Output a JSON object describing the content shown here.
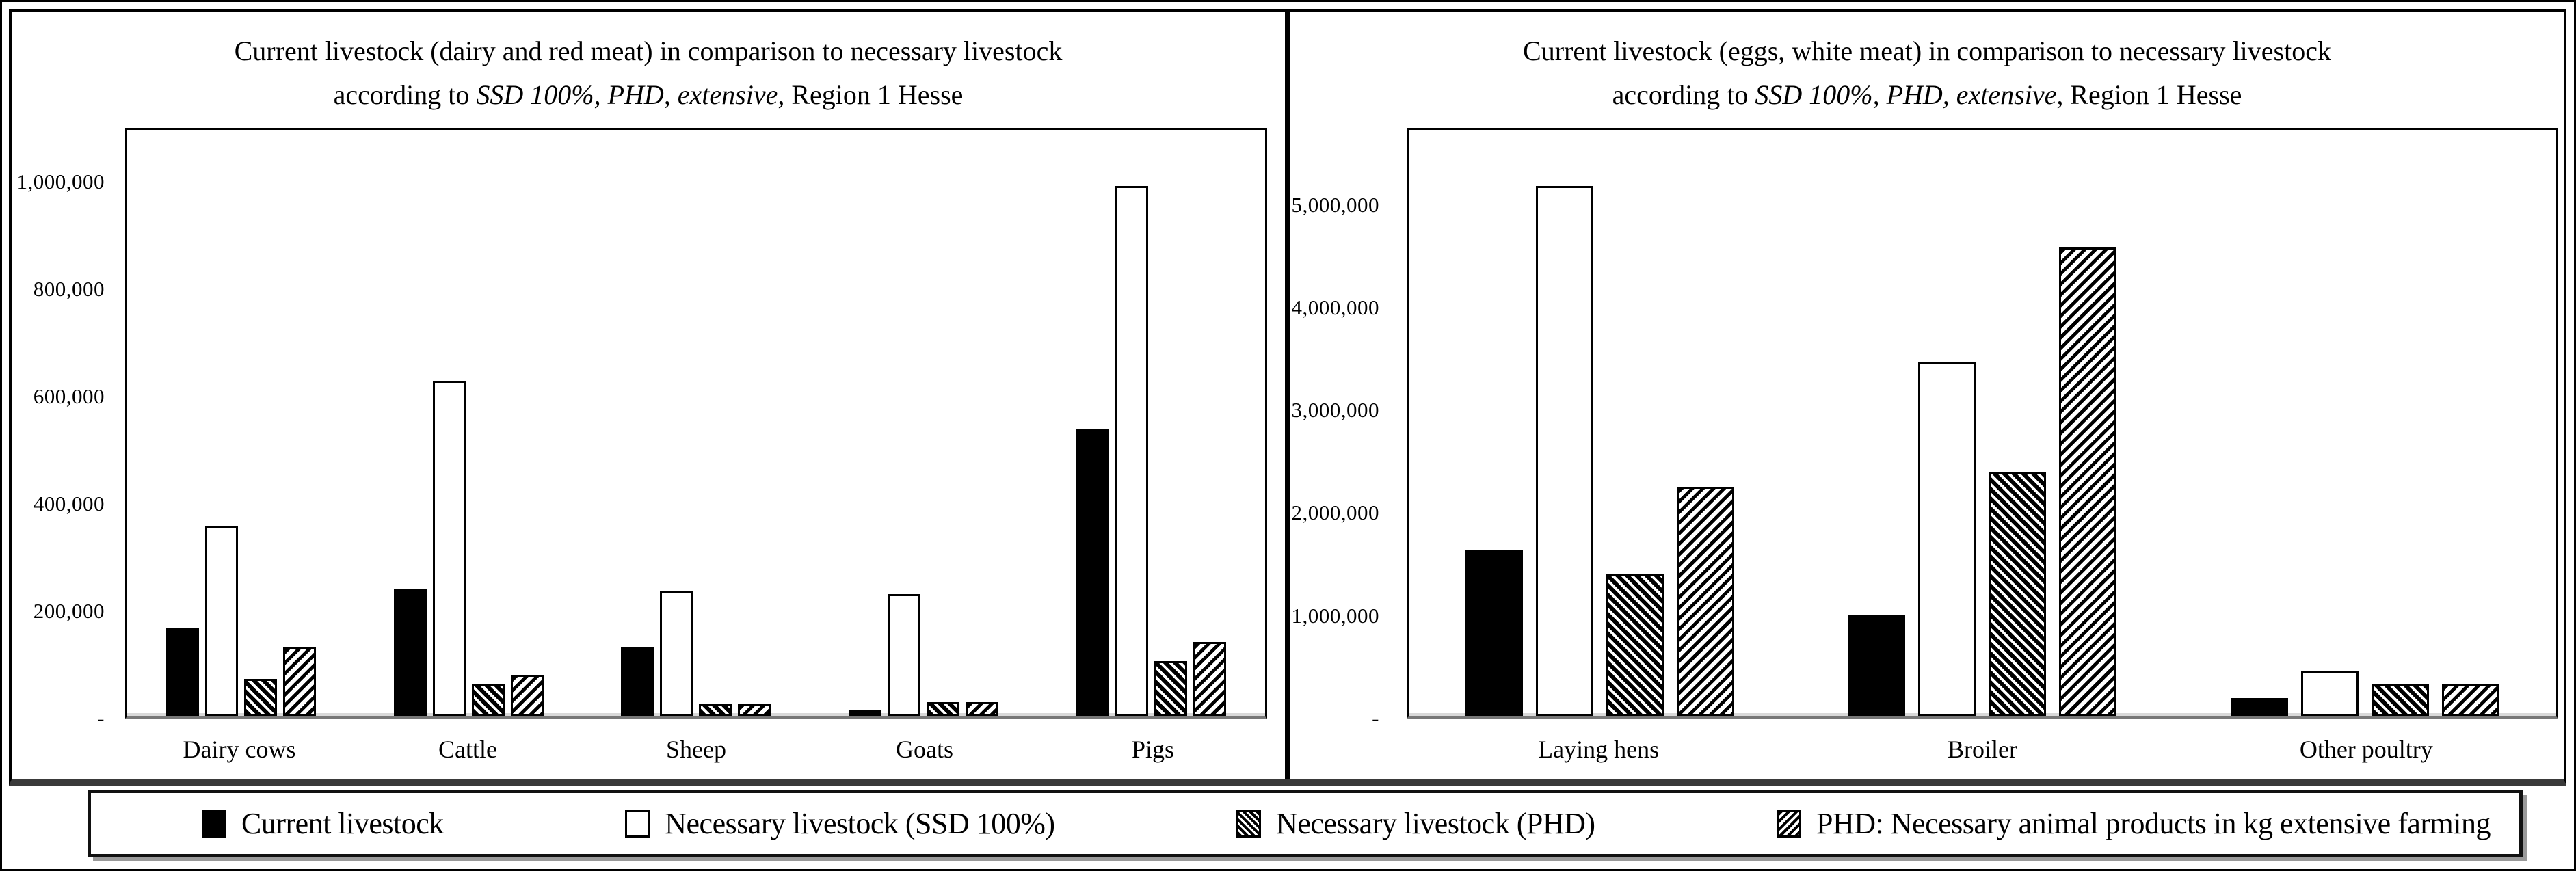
{
  "legend": {
    "items": [
      {
        "label": "Current livestock",
        "style": "solid-black",
        "icon": "black-square-swatch"
      },
      {
        "label": "Necessary livestock (SSD 100%)",
        "style": "white-outline",
        "icon": "white-square-swatch"
      },
      {
        "label": "Necessary livestock (PHD)",
        "style": "hatch-backslash",
        "icon": "backslash-hatch-swatch"
      },
      {
        "label": "PHD: Necessary animal products in kg extensive farming",
        "style": "hatch-slash",
        "icon": "slash-hatch-swatch"
      }
    ],
    "position": "bottom-shared"
  },
  "chart_data": [
    {
      "type": "bar",
      "title_line1": "Current livestock (dairy and red meat) in comparison to necessary livestock",
      "title_line2_prefix": "according to ",
      "title_line2_italic": "SSD 100%, PHD, extensive",
      "title_line2_suffix": ", Region 1 Hesse",
      "xlabel": "",
      "ylabel": "",
      "grid": false,
      "legend_position": "bottom-shared",
      "categories": [
        "Dairy cows",
        "Cattle",
        "Sheep",
        "Goats",
        "Pigs"
      ],
      "series": [
        {
          "name": "Current livestock",
          "style": "solid-black",
          "values": [
            165000,
            238000,
            130000,
            11000,
            540000
          ]
        },
        {
          "name": "Necessary livestock (SSD 100%)",
          "style": "white-outline",
          "values": [
            358000,
            630000,
            235000,
            230000,
            995000
          ]
        },
        {
          "name": "Necessary livestock (PHD)",
          "style": "hatch-backslash",
          "values": [
            71000,
            62000,
            25000,
            27000,
            104000
          ]
        },
        {
          "name": "PHD: Necessary animal products in kg extensive farming",
          "style": "hatch-slash",
          "values": [
            129000,
            78000,
            25000,
            27000,
            140000
          ]
        }
      ],
      "ylim": [
        0,
        1100000
      ],
      "y_ticks": [
        {
          "label": "1,000,000",
          "value": 1000000
        },
        {
          "label": "800,000",
          "value": 800000
        },
        {
          "label": "600,000",
          "value": 600000
        },
        {
          "label": "400,000",
          "value": 400000
        },
        {
          "label": "200,000",
          "value": 200000
        },
        {
          "label": "-",
          "value": 0
        }
      ]
    },
    {
      "type": "bar",
      "title_line1": "Current livestock (eggs, white meat) in comparison to necessary livestock",
      "title_line2_prefix": "according to ",
      "title_line2_italic": "SSD 100%, PHD, extensive",
      "title_line2_suffix": ", Region 1 Hesse",
      "xlabel": "",
      "ylabel": "",
      "grid": false,
      "legend_position": "bottom-shared",
      "categories": [
        "Laying hens",
        "Broiler",
        "Other poultry"
      ],
      "series": [
        {
          "name": "Current livestock",
          "style": "solid-black",
          "values": [
            1630000,
            1000000,
            180000
          ]
        },
        {
          "name": "Necessary livestock (SSD 100%)",
          "style": "white-outline",
          "values": [
            5200000,
            3470000,
            440000
          ]
        },
        {
          "name": "Necessary livestock (PHD)",
          "style": "hatch-backslash",
          "values": [
            1400000,
            2400000,
            320000
          ]
        },
        {
          "name": "PHD: Necessary animal products in kg extensive farming",
          "style": "hatch-slash",
          "values": [
            2250000,
            4600000,
            320000
          ]
        }
      ],
      "ylim": [
        0,
        5750000
      ],
      "y_ticks": [
        {
          "label": "5,000,000",
          "value": 5000000
        },
        {
          "label": "4,000,000",
          "value": 4000000
        },
        {
          "label": "3,000,000",
          "value": 3000000
        },
        {
          "label": "2,000,000",
          "value": 2000000
        },
        {
          "label": "1,000,000",
          "value": 1000000
        },
        {
          "label": "-",
          "value": 0
        }
      ]
    }
  ],
  "colors": {
    "foreground": "#000000",
    "background": "#ffffff",
    "axis_baseline": "#d9d9d9",
    "panel_shadow": "#3a3a3a",
    "legend_shadow": "#9a9a9a"
  }
}
